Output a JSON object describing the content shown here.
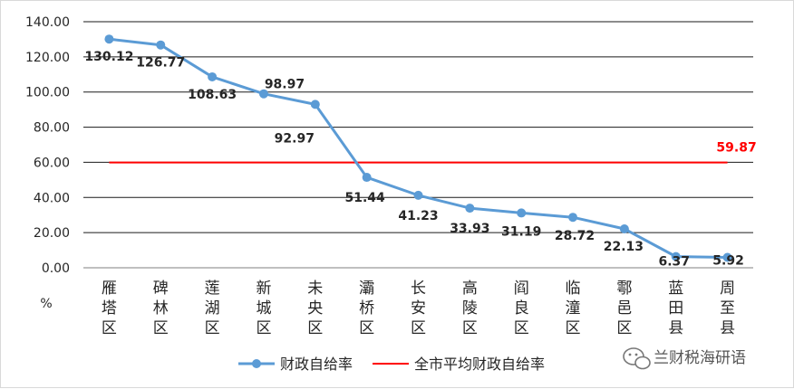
{
  "chart_data": {
    "type": "line",
    "title": "",
    "xlabel": "",
    "ylabel": "%",
    "ylim": [
      0,
      140
    ],
    "yticks": [
      "0.00",
      "20.00",
      "40.00",
      "60.00",
      "80.00",
      "100.00",
      "120.00",
      "140.00"
    ],
    "grid": true,
    "legend_position": "bottom",
    "categories": [
      "雁塔区",
      "碑林区",
      "莲湖区",
      "新城区",
      "未央区",
      "灞桥区",
      "长安区",
      "高陵区",
      "阎良区",
      "临潼区",
      "鄠邑区",
      "蓝田县",
      "周至县"
    ],
    "series": [
      {
        "name": "财政自给率",
        "color": "#5b9bd5",
        "values": [
          130.12,
          126.77,
          108.63,
          98.97,
          92.97,
          51.44,
          41.23,
          33.93,
          31.19,
          28.72,
          22.13,
          6.37,
          5.92
        ],
        "labels": [
          "130.12",
          "126.77",
          "108.63",
          "98.97",
          "92.97",
          "51.44",
          "41.23",
          "33.93",
          "31.19",
          "28.72",
          "22.13",
          "6.37",
          "5.92"
        ]
      },
      {
        "name": "全市平均财政自给率",
        "color": "#ff0000",
        "value": 59.87,
        "label": "59.87"
      }
    ]
  },
  "watermark": {
    "icon": "wechat-icon",
    "text": "兰财税海研语"
  }
}
